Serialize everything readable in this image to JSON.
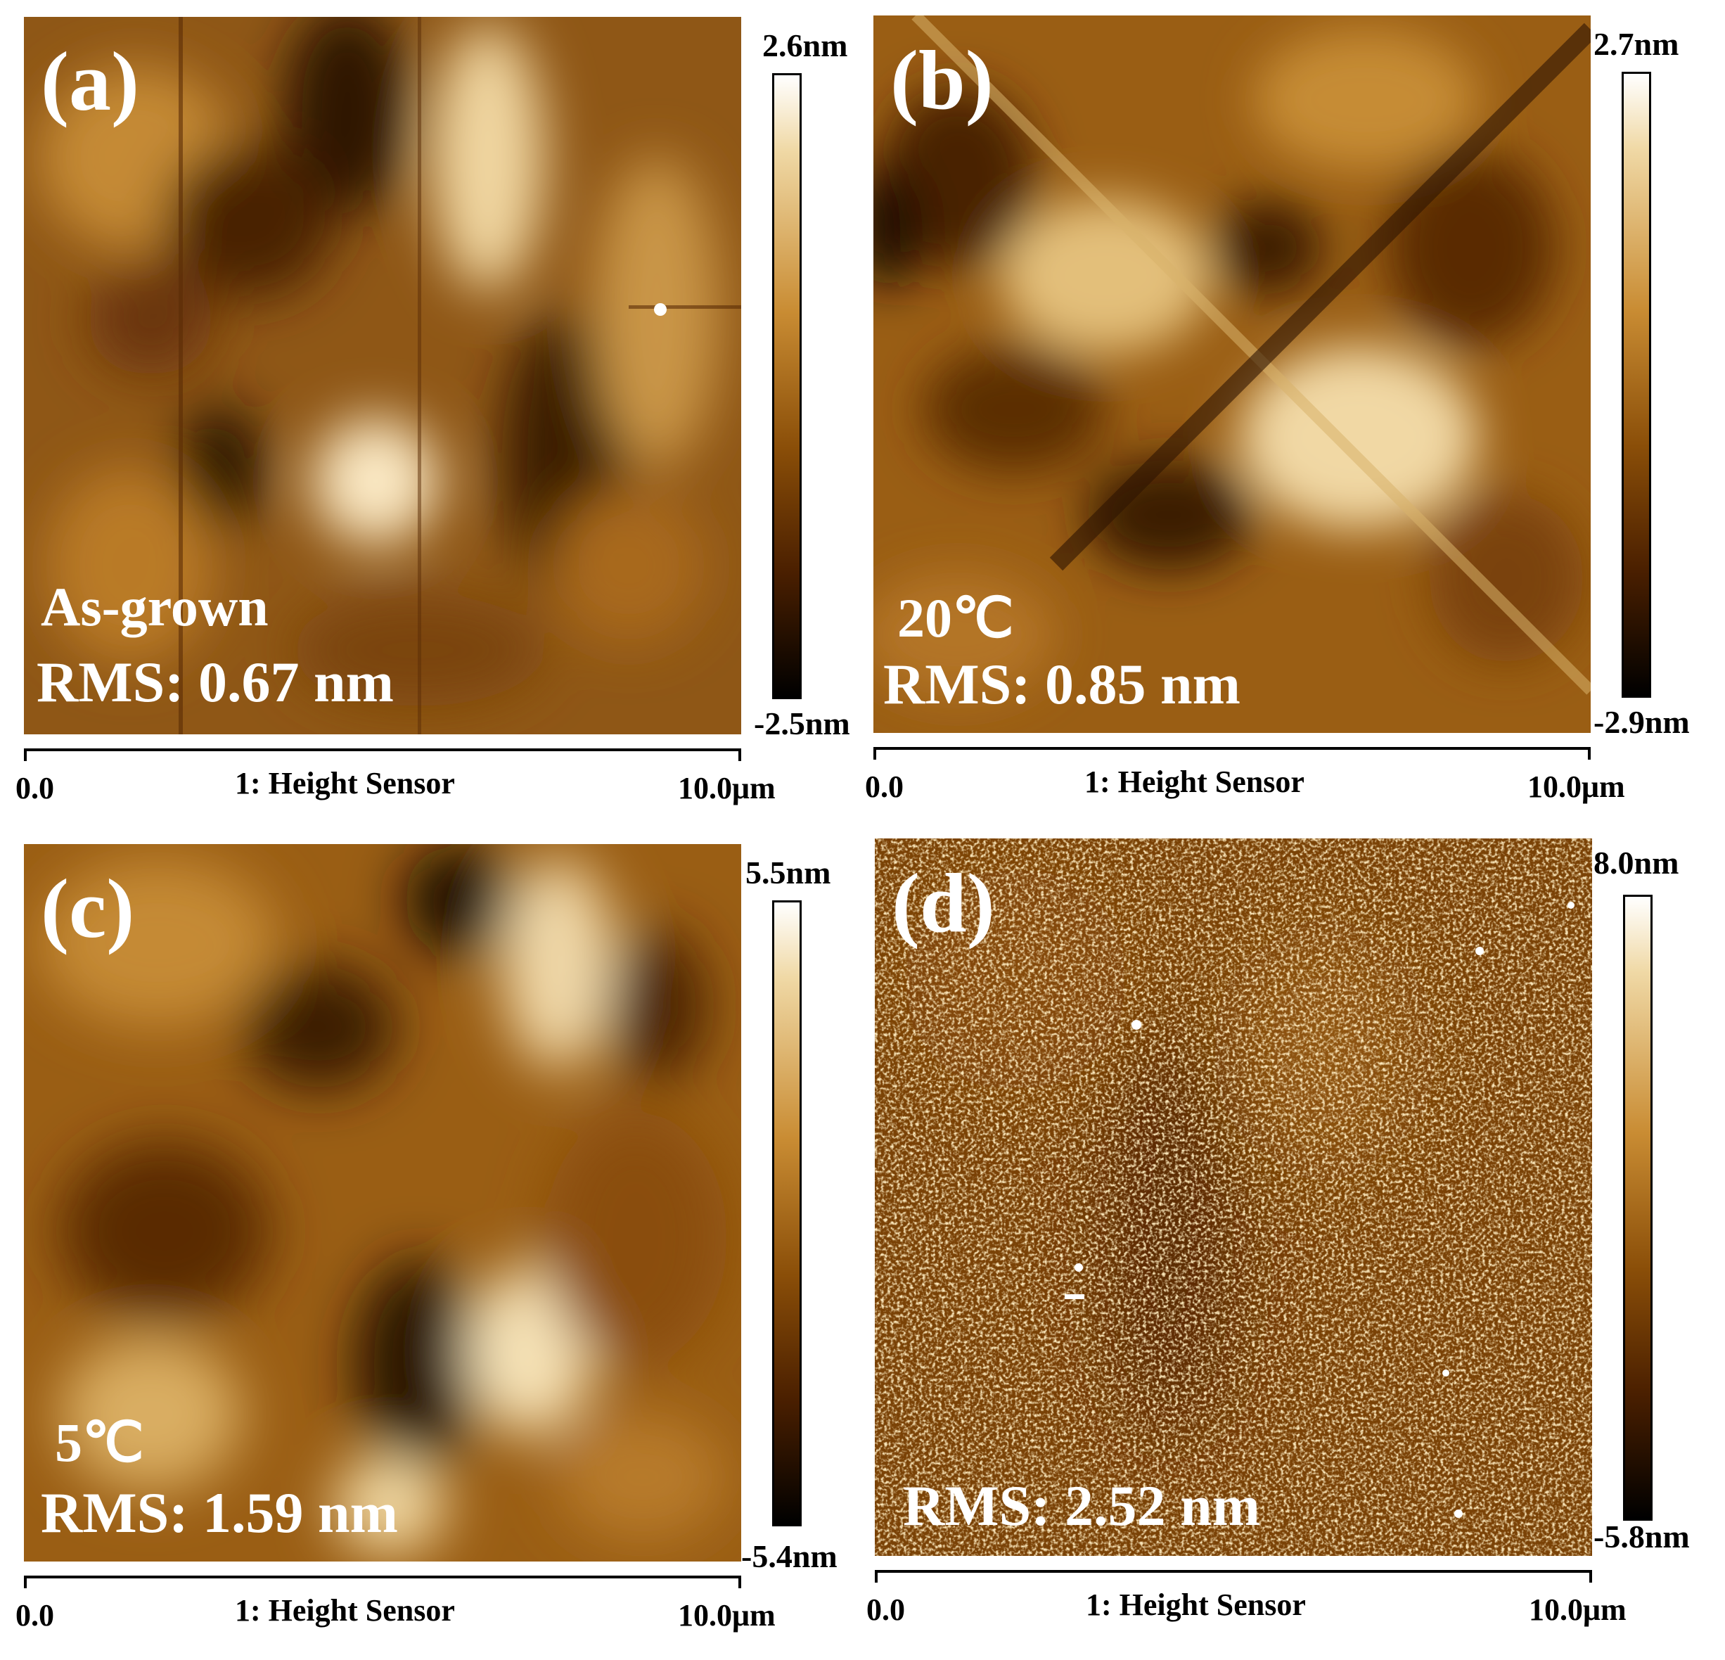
{
  "panels": [
    {
      "id": "a",
      "letter": "(a)",
      "condition": "As-grown",
      "rms": "RMS: 0.67 nm",
      "cbar_max": "2.6nm",
      "cbar_min": "-2.5nm",
      "axis_start": "0.0",
      "axis_label": "1: Height Sensor",
      "axis_end": "10.0μm"
    },
    {
      "id": "b",
      "letter": "(b)",
      "condition": "20℃",
      "rms": "RMS: 0.85 nm",
      "cbar_max": "2.7nm",
      "cbar_min": "-2.9nm",
      "axis_start": "0.0",
      "axis_label": "1: Height Sensor",
      "axis_end": "10.0μm"
    },
    {
      "id": "c",
      "letter": "(c)",
      "condition": "5℃",
      "rms": "RMS: 1.59 nm",
      "cbar_max": "5.5nm",
      "cbar_min": "-5.4nm",
      "axis_start": "0.0",
      "axis_label": "1: Height Sensor",
      "axis_end": "10.0μm"
    },
    {
      "id": "d",
      "letter": "(d)",
      "condition": "",
      "rms": "RMS: 2.52 nm",
      "cbar_max": "8.0nm",
      "cbar_min": "-5.8nm",
      "axis_start": "0.0",
      "axis_label": "1: Height Sensor",
      "axis_end": "10.0μm"
    }
  ],
  "colors": {
    "afm_dark": "#2a1200",
    "afm_mid": "#9a5e14",
    "afm_light": "#f3dcaa",
    "text_overlay": "#ffffff"
  }
}
